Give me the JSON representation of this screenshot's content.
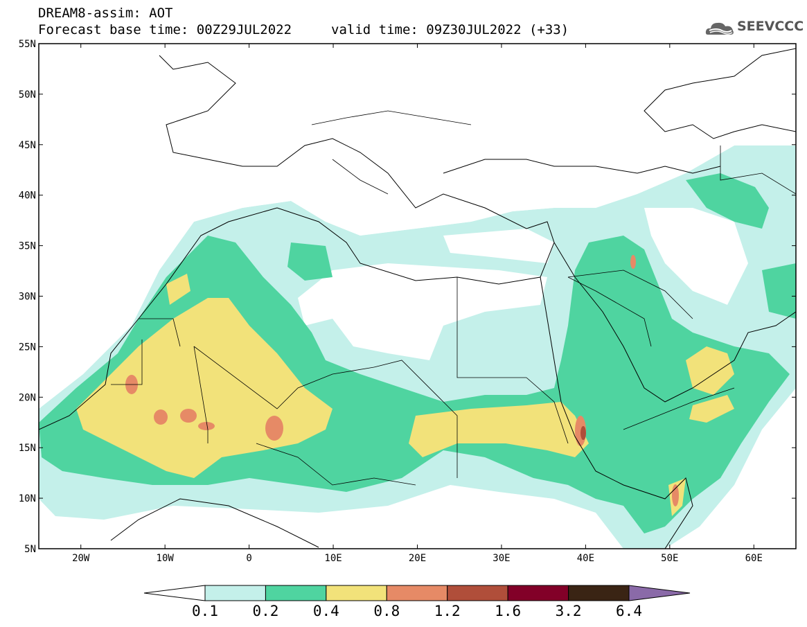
{
  "title": {
    "line1": "DREAM8-assim: AOT",
    "line2": "Forecast base time: 00Z29JUL2022",
    "valid": "valid time: 09Z30JUL2022 (+33)"
  },
  "logo": {
    "text": "SEEVCCC",
    "icon": "cloud-logo-icon"
  },
  "map": {
    "lon_range": [
      -25,
      65
    ],
    "lat_range": [
      5,
      55
    ],
    "lat_labels": [
      "55N",
      "50N",
      "45N",
      "40N",
      "35N",
      "30N",
      "25N",
      "20N",
      "15N",
      "10N",
      "5N"
    ],
    "lon_labels": [
      "20W",
      "10W",
      "0",
      "10E",
      "20E",
      "30E",
      "40E",
      "50E",
      "60E"
    ]
  },
  "colorbar": {
    "labels": [
      "0.1",
      "0.2",
      "0.4",
      "0.8",
      "1.2",
      "1.6",
      "3.2",
      "6.4"
    ],
    "colors": [
      "#ffffff",
      "#c4f0ea",
      "#4fd4a0",
      "#f2e27a",
      "#e68a66",
      "#b04e3a",
      "#820028",
      "#3a2414",
      "#8a6aa8"
    ]
  }
}
